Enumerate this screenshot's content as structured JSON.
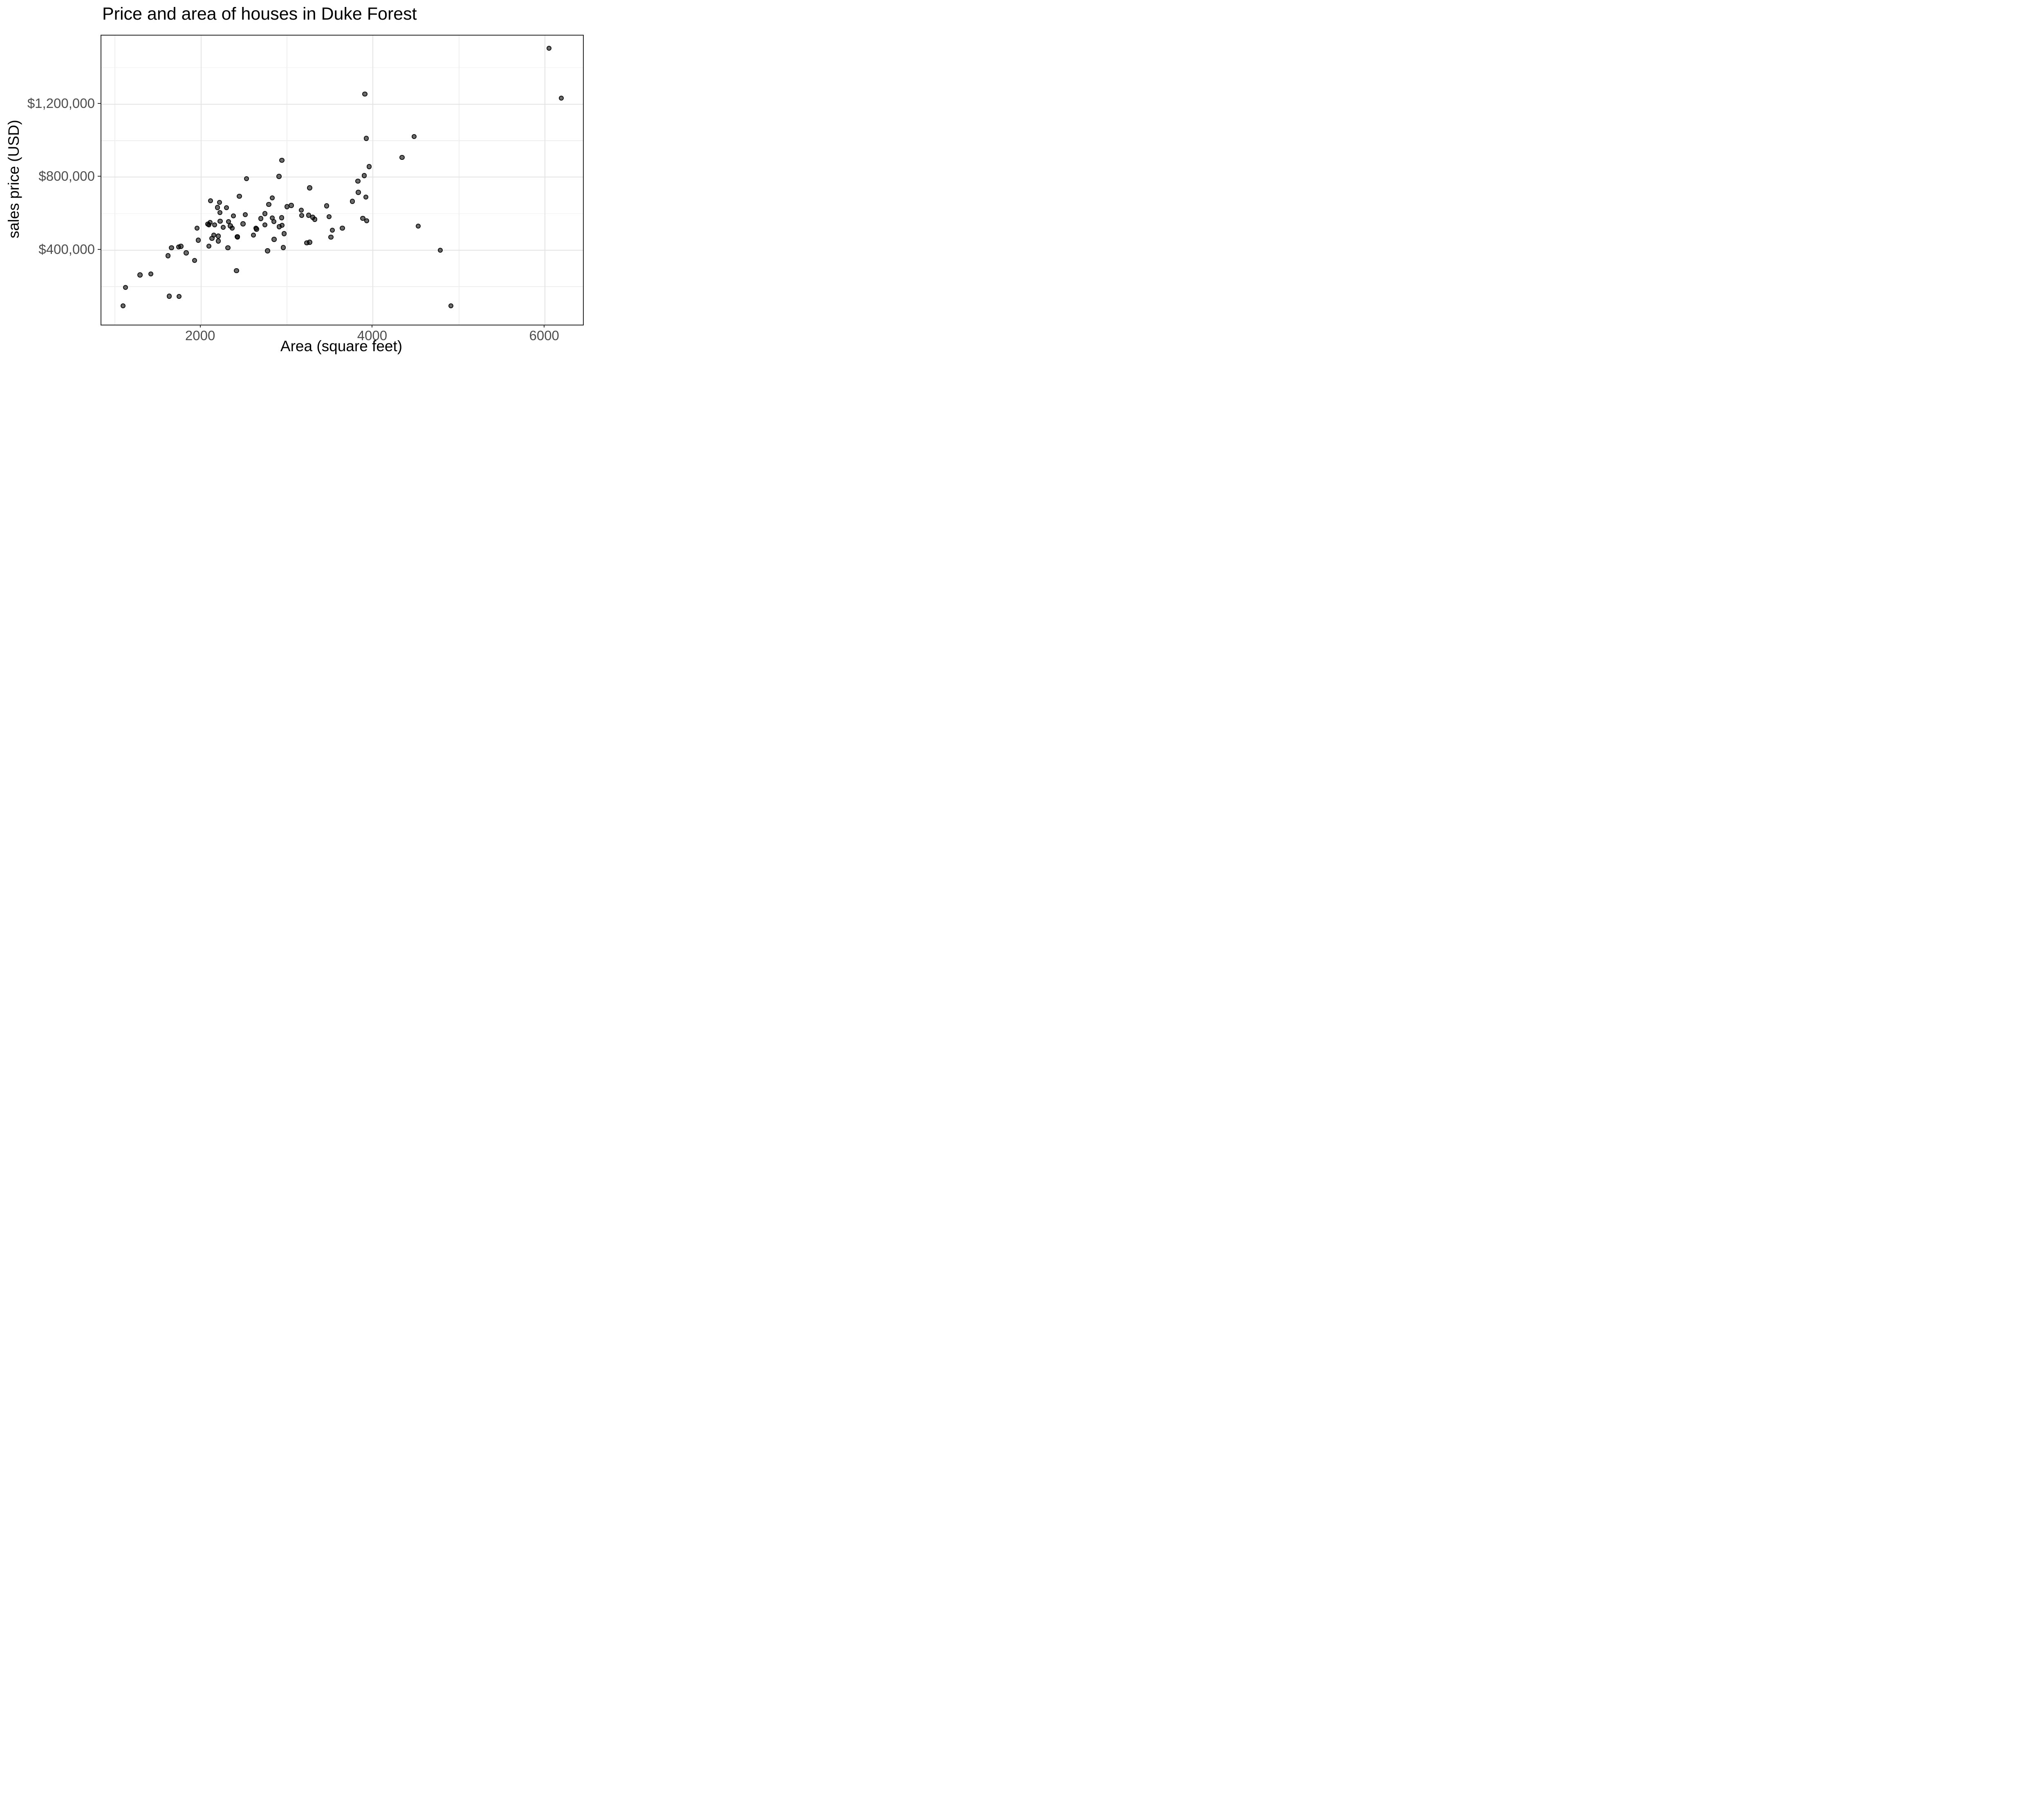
{
  "title": "Price and area of houses in Duke Forest",
  "x_axis": {
    "title": "Area (square feet)",
    "major_ticks": [
      2000,
      4000,
      6000
    ],
    "tick_labels": [
      "2000",
      "4000",
      "6000"
    ],
    "minor_ticks": [
      1000,
      3000,
      5000
    ]
  },
  "y_axis": {
    "title": "sales price (USD)",
    "major_ticks": [
      400000,
      800000,
      1200000
    ],
    "tick_labels": [
      "$400,000",
      "$800,000",
      "$1,200,000"
    ],
    "minor_ticks": [
      200000,
      600000,
      1000000,
      1400000
    ]
  },
  "style": {
    "point_fill": "rgba(0,0,0,0.58)",
    "point_rim": "rgba(0,0,0,0.82)",
    "grid_major_color": "#e3e3e3",
    "grid_minor_color": "#efefef",
    "panel_border_color": "#262626",
    "tick_label_color": "#4d4d4d",
    "title_color": "#000000",
    "background": "#ffffff"
  },
  "chart_data": {
    "type": "scatter",
    "title": "Price and area of houses in Duke Forest",
    "xlabel": "Area (square feet)",
    "ylabel": "sales price (USD)",
    "xlim": [
      842,
      6441
    ],
    "ylim": [
      -8300,
      1575900
    ],
    "grid": true,
    "legend": false,
    "points": [
      [
        2110,
        671000
      ],
      [
        2217,
        662000
      ],
      [
        2192,
        634000
      ],
      [
        2219,
        605000
      ],
      [
        2222,
        559000
      ],
      [
        2107,
        552000
      ],
      [
        2080,
        543000
      ],
      [
        2093,
        538000
      ],
      [
        2160,
        538000
      ],
      [
        1954,
        521000
      ],
      [
        2259,
        525000
      ],
      [
        2321,
        557000
      ],
      [
        2342,
        533000
      ],
      [
        2363,
        520000
      ],
      [
        2489,
        544000
      ],
      [
        2941,
        892000
      ],
      [
        2907,
        804000
      ],
      [
        2528,
        791000
      ],
      [
        3263,
        741000
      ],
      [
        2446,
        695000
      ],
      [
        2829,
        686000
      ],
      [
        2789,
        650000
      ],
      [
        2295,
        633000
      ],
      [
        2999,
        638000
      ],
      [
        3050,
        645000
      ],
      [
        3167,
        619000
      ],
      [
        3170,
        590000
      ],
      [
        3251,
        591000
      ],
      [
        3299,
        580000
      ],
      [
        3322,
        569000
      ],
      [
        3461,
        643000
      ],
      [
        3490,
        583000
      ],
      [
        2514,
        595000
      ],
      [
        2376,
        588000
      ],
      [
        2742,
        600000
      ],
      [
        3644,
        520000
      ],
      [
        2696,
        573000
      ],
      [
        2829,
        576000
      ],
      [
        2938,
        578000
      ],
      [
        2849,
        557000
      ],
      [
        2742,
        538000
      ],
      [
        2639,
        520000
      ],
      [
        2646,
        515000
      ],
      [
        2909,
        528000
      ],
      [
        2942,
        536000
      ],
      [
        2967,
        490000
      ],
      [
        2422,
        474000
      ],
      [
        2425,
        472000
      ],
      [
        2610,
        483000
      ],
      [
        2850,
        459000
      ],
      [
        2313,
        413000
      ],
      [
        2957,
        414000
      ],
      [
        2775,
        396000
      ],
      [
        2413,
        287000
      ],
      [
        3230,
        440000
      ],
      [
        3263,
        443000
      ],
      [
        3527,
        509000
      ],
      [
        3510,
        471000
      ],
      [
        1657,
        413000
      ],
      [
        1740,
        417000
      ],
      [
        1767,
        421000
      ],
      [
        1828,
        385000
      ],
      [
        1618,
        369000
      ],
      [
        1926,
        343000
      ],
      [
        2092,
        422000
      ],
      [
        1292,
        264000
      ],
      [
        1418,
        269000
      ],
      [
        1123,
        196000
      ],
      [
        1630,
        147000
      ],
      [
        1744,
        146000
      ],
      [
        1095,
        95000
      ],
      [
        1969,
        454000
      ],
      [
        2149,
        482000
      ],
      [
        2202,
        477000
      ],
      [
        2128,
        465000
      ],
      [
        2202,
        450000
      ],
      [
        3922,
        1012000
      ],
      [
        4479,
        1022000
      ],
      [
        4337,
        908000
      ],
      [
        3955,
        858000
      ],
      [
        3898,
        808000
      ],
      [
        3825,
        778000
      ],
      [
        3830,
        717000
      ],
      [
        3918,
        691000
      ],
      [
        3759,
        667000
      ],
      [
        3882,
        574000
      ],
      [
        3926,
        561000
      ],
      [
        4525,
        532000
      ],
      [
        3906,
        1255000
      ],
      [
        4781,
        399000
      ],
      [
        4907,
        95000
      ],
      [
        6047,
        1507000
      ],
      [
        6188,
        1233000
      ]
    ]
  }
}
